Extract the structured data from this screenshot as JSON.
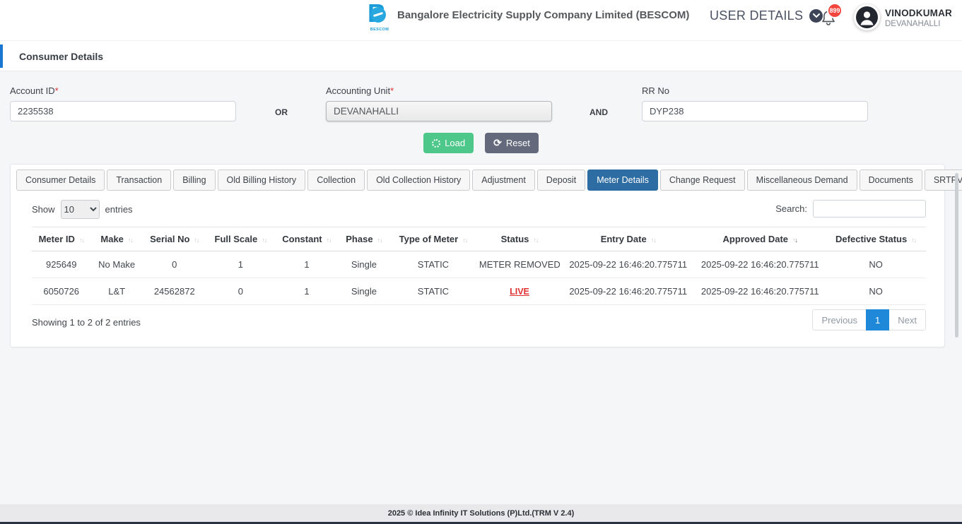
{
  "header": {
    "title": "Bangalore Electricity Supply Company Limited (BESCOM)",
    "logo_text": "BESCOM",
    "user_details_label": "USER DETAILS",
    "notification_count": "899",
    "user_name": "VINODKUMAR",
    "user_location": "DEVANAHALLI"
  },
  "breadcrumb": {
    "title": "Consumer Details"
  },
  "search_form": {
    "account_id": {
      "label": "Account ID",
      "required_mark": "*",
      "value": "2235538"
    },
    "or_label": "OR",
    "accounting_unit": {
      "label": "Accounting Unit",
      "required_mark": "*",
      "value": "DEVANAHALLI"
    },
    "and_label": "AND",
    "rr_no": {
      "label": "RR No",
      "value": "DYP238"
    },
    "load_button": "Load",
    "reset_button": "Reset"
  },
  "tabs": [
    {
      "label": "Consumer Details",
      "active": false
    },
    {
      "label": "Transaction",
      "active": false
    },
    {
      "label": "Billing",
      "active": false
    },
    {
      "label": "Old Billing History",
      "active": false
    },
    {
      "label": "Collection",
      "active": false
    },
    {
      "label": "Old Collection History",
      "active": false
    },
    {
      "label": "Adjustment",
      "active": false
    },
    {
      "label": "Deposit",
      "active": false
    },
    {
      "label": "Meter Details",
      "active": true
    },
    {
      "label": "Change Request",
      "active": false
    },
    {
      "label": "Miscellaneous Demand",
      "active": false
    },
    {
      "label": "Documents",
      "active": false
    },
    {
      "label": "SRTPV Payment Details",
      "active": false
    }
  ],
  "table_controls": {
    "show_label": "Show",
    "page_size": "10",
    "entries_label": "entries",
    "search_label": "Search:",
    "search_value": ""
  },
  "meter_table": {
    "columns": [
      "Meter ID",
      "Make",
      "Serial No",
      "Full Scale",
      "Constant",
      "Phase",
      "Type of Meter",
      "Status",
      "Entry Date",
      "Approved Date",
      "Defective Status"
    ],
    "sort_active_column_index": 9,
    "sort_active_direction": "desc",
    "status_link_values": [
      "LIVE"
    ],
    "rows": [
      [
        "925649",
        "No Make",
        "0",
        "1",
        "1",
        "Single",
        "STATIC",
        "METER REMOVED",
        "2025-09-22 16:46:20.775711",
        "2025-09-22 16:46:20.775711",
        "NO"
      ],
      [
        "6050726",
        "L&T",
        "24562872",
        "0",
        "1",
        "Single",
        "STATIC",
        "LIVE",
        "2025-09-22 16:46:20.775711",
        "2025-09-22 16:46:20.775711",
        "NO"
      ]
    ],
    "summary": "Showing 1 to 2 of 2 entries",
    "pagination": {
      "previous": "Previous",
      "current_page": "1",
      "next": "Next"
    }
  },
  "footer": {
    "text": "2025 © Idea Infinity IT Solutions (P)Ltd.(TRM V 2.4)"
  },
  "colors": {
    "accent_blue": "#1976d2",
    "active_tab_blue": "#2e6da4",
    "pagination_active_blue": "#1f88d9",
    "load_green": "#4ec78a",
    "reset_grey": "#646a7c",
    "live_red": "#e03131",
    "badge_red": "#f1453d",
    "logo_blue": "#1b9cd8"
  }
}
